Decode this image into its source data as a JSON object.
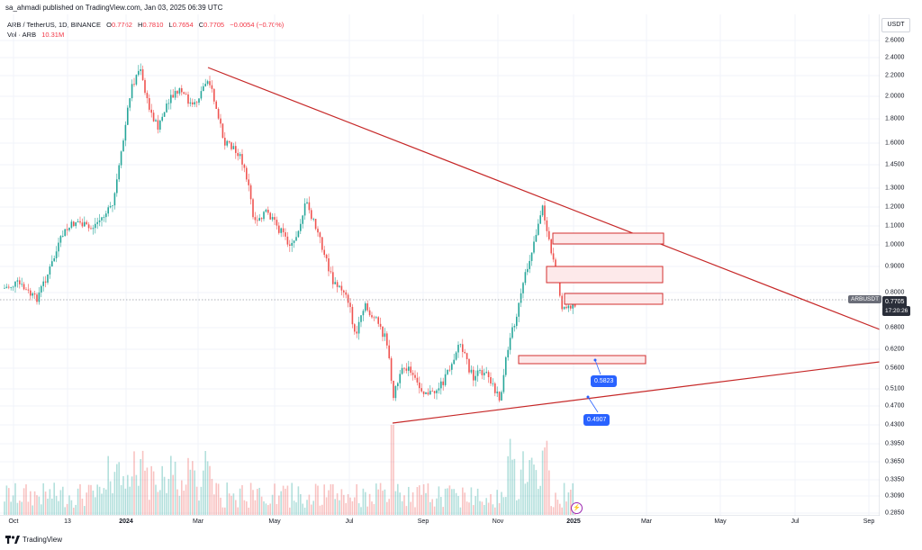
{
  "header": {
    "credit": "sa_ahmadi published on TradingView.com, Jan 03, 2025 06:39 UTC"
  },
  "legend": {
    "symbol": "ARB / TetherUS, 1D, BINANCE",
    "open_key": "O",
    "open": "0.7762",
    "high_key": "H",
    "high": "0.7810",
    "low_key": "L",
    "low": "0.7654",
    "close_key": "C",
    "close": "0.7705",
    "change": "−0.0054 (−0.70%)",
    "volume_label": "Vol · ARB",
    "volume": "10.31M"
  },
  "price_axis": {
    "currency": "USDT",
    "labels": [
      "2.6000",
      "2.4000",
      "2.2000",
      "2.0000",
      "1.8000",
      "1.6000",
      "1.4500",
      "1.3000",
      "1.2000",
      "1.1000",
      "1.0000",
      "0.9000",
      "0.8000",
      "0.6800",
      "0.6200",
      "0.5600",
      "0.5100",
      "0.4700",
      "0.4300",
      "0.3950",
      "0.3650",
      "0.3350",
      "0.3090",
      "0.2850"
    ]
  },
  "time_axis": {
    "labels": [
      "Oct",
      "13",
      "2024",
      "Mar",
      "May",
      "Jul",
      "Sep",
      "Nov",
      "2025",
      "Mar",
      "May",
      "Jul",
      "Sep"
    ]
  },
  "current": {
    "ticker_tag": "ARBUSDT",
    "price": "0.7705",
    "countdown": "17:20:26"
  },
  "annotations": {
    "callout_1": "0.5823",
    "callout_2": "0.4907"
  },
  "footer": {
    "brand": "TradingView"
  },
  "colors": {
    "up": "#26a69a",
    "down": "#ef5350",
    "trendline": "#c62828",
    "zone_fill": "#fde9ea",
    "callout": "#2962ff"
  },
  "icons": [
    "tradingview-logo-icon",
    "flash-icon"
  ]
}
